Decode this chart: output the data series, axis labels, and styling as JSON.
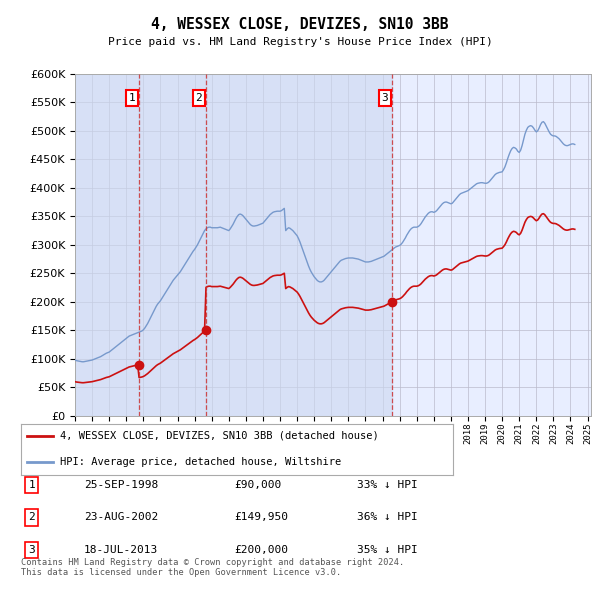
{
  "title": "4, WESSEX CLOSE, DEVIZES, SN10 3BB",
  "subtitle": "Price paid vs. HM Land Registry's House Price Index (HPI)",
  "background_color": "#ffffff",
  "plot_bg_color": "#e8eeff",
  "grid_color": "#bbbbcc",
  "hpi_line_color": "#7799cc",
  "price_line_color": "#cc1111",
  "vline_color": "#cc3333",
  "shade_color": "#ccd8f0",
  "sales": [
    {
      "label": 1,
      "date_x": 1998.73,
      "price": 90000
    },
    {
      "label": 2,
      "date_x": 2002.64,
      "price": 149950
    },
    {
      "label": 3,
      "date_x": 2013.54,
      "price": 200000
    }
  ],
  "legend_entries": [
    {
      "label": "4, WESSEX CLOSE, DEVIZES, SN10 3BB (detached house)",
      "color": "#cc1111"
    },
    {
      "label": "HPI: Average price, detached house, Wiltshire",
      "color": "#7799cc"
    }
  ],
  "table_rows": [
    {
      "num": "1",
      "date": "25-SEP-1998",
      "amount": "£90,000",
      "pct": "33% ↓ HPI"
    },
    {
      "num": "2",
      "date": "23-AUG-2002",
      "amount": "£149,950",
      "pct": "36% ↓ HPI"
    },
    {
      "num": "3",
      "date": "18-JUL-2013",
      "amount": "£200,000",
      "pct": "35% ↓ HPI"
    }
  ],
  "footnote": "Contains HM Land Registry data © Crown copyright and database right 2024.\nThis data is licensed under the Open Government Licence v3.0.",
  "ylim": [
    0,
    600000
  ],
  "yticks": [
    0,
    50000,
    100000,
    150000,
    200000,
    250000,
    300000,
    350000,
    400000,
    450000,
    500000,
    550000,
    600000
  ],
  "xlim": [
    1995.0,
    2025.2
  ],
  "xticks": [
    1995,
    1996,
    1997,
    1998,
    1999,
    2000,
    2001,
    2002,
    2003,
    2004,
    2005,
    2006,
    2007,
    2008,
    2009,
    2010,
    2011,
    2012,
    2013,
    2014,
    2015,
    2016,
    2017,
    2018,
    2019,
    2020,
    2021,
    2022,
    2023,
    2024,
    2025
  ],
  "hpi_x": [
    1995.0,
    1995.083,
    1995.167,
    1995.25,
    1995.333,
    1995.417,
    1995.5,
    1995.583,
    1995.667,
    1995.75,
    1995.833,
    1995.917,
    1996.0,
    1996.083,
    1996.167,
    1996.25,
    1996.333,
    1996.417,
    1996.5,
    1996.583,
    1996.667,
    1996.75,
    1996.833,
    1996.917,
    1997.0,
    1997.083,
    1997.167,
    1997.25,
    1997.333,
    1997.417,
    1997.5,
    1997.583,
    1997.667,
    1997.75,
    1997.833,
    1997.917,
    1998.0,
    1998.083,
    1998.167,
    1998.25,
    1998.333,
    1998.417,
    1998.5,
    1998.583,
    1998.667,
    1998.75,
    1998.833,
    1998.917,
    1999.0,
    1999.083,
    1999.167,
    1999.25,
    1999.333,
    1999.417,
    1999.5,
    1999.583,
    1999.667,
    1999.75,
    1999.833,
    1999.917,
    2000.0,
    2000.083,
    2000.167,
    2000.25,
    2000.333,
    2000.417,
    2000.5,
    2000.583,
    2000.667,
    2000.75,
    2000.833,
    2000.917,
    2001.0,
    2001.083,
    2001.167,
    2001.25,
    2001.333,
    2001.417,
    2001.5,
    2001.583,
    2001.667,
    2001.75,
    2001.833,
    2001.917,
    2002.0,
    2002.083,
    2002.167,
    2002.25,
    2002.333,
    2002.417,
    2002.5,
    2002.583,
    2002.667,
    2002.75,
    2002.833,
    2002.917,
    2003.0,
    2003.083,
    2003.167,
    2003.25,
    2003.333,
    2003.417,
    2003.5,
    2003.583,
    2003.667,
    2003.75,
    2003.833,
    2003.917,
    2004.0,
    2004.083,
    2004.167,
    2004.25,
    2004.333,
    2004.417,
    2004.5,
    2004.583,
    2004.667,
    2004.75,
    2004.833,
    2004.917,
    2005.0,
    2005.083,
    2005.167,
    2005.25,
    2005.333,
    2005.417,
    2005.5,
    2005.583,
    2005.667,
    2005.75,
    2005.833,
    2005.917,
    2006.0,
    2006.083,
    2006.167,
    2006.25,
    2006.333,
    2006.417,
    2006.5,
    2006.583,
    2006.667,
    2006.75,
    2006.833,
    2006.917,
    2007.0,
    2007.083,
    2007.167,
    2007.25,
    2007.333,
    2007.417,
    2007.5,
    2007.583,
    2007.667,
    2007.75,
    2007.833,
    2007.917,
    2008.0,
    2008.083,
    2008.167,
    2008.25,
    2008.333,
    2008.417,
    2008.5,
    2008.583,
    2008.667,
    2008.75,
    2008.833,
    2008.917,
    2009.0,
    2009.083,
    2009.167,
    2009.25,
    2009.333,
    2009.417,
    2009.5,
    2009.583,
    2009.667,
    2009.75,
    2009.833,
    2009.917,
    2010.0,
    2010.083,
    2010.167,
    2010.25,
    2010.333,
    2010.417,
    2010.5,
    2010.583,
    2010.667,
    2010.75,
    2010.833,
    2010.917,
    2011.0,
    2011.083,
    2011.167,
    2011.25,
    2011.333,
    2011.417,
    2011.5,
    2011.583,
    2011.667,
    2011.75,
    2011.833,
    2011.917,
    2012.0,
    2012.083,
    2012.167,
    2012.25,
    2012.333,
    2012.417,
    2012.5,
    2012.583,
    2012.667,
    2012.75,
    2012.833,
    2012.917,
    2013.0,
    2013.083,
    2013.167,
    2013.25,
    2013.333,
    2013.417,
    2013.5,
    2013.583,
    2013.667,
    2013.75,
    2013.833,
    2013.917,
    2014.0,
    2014.083,
    2014.167,
    2014.25,
    2014.333,
    2014.417,
    2014.5,
    2014.583,
    2014.667,
    2014.75,
    2014.833,
    2014.917,
    2015.0,
    2015.083,
    2015.167,
    2015.25,
    2015.333,
    2015.417,
    2015.5,
    2015.583,
    2015.667,
    2015.75,
    2015.833,
    2015.917,
    2016.0,
    2016.083,
    2016.167,
    2016.25,
    2016.333,
    2016.417,
    2016.5,
    2016.583,
    2016.667,
    2016.75,
    2016.833,
    2016.917,
    2017.0,
    2017.083,
    2017.167,
    2017.25,
    2017.333,
    2017.417,
    2017.5,
    2017.583,
    2017.667,
    2017.75,
    2017.833,
    2017.917,
    2018.0,
    2018.083,
    2018.167,
    2018.25,
    2018.333,
    2018.417,
    2018.5,
    2018.583,
    2018.667,
    2018.75,
    2018.833,
    2018.917,
    2019.0,
    2019.083,
    2019.167,
    2019.25,
    2019.333,
    2019.417,
    2019.5,
    2019.583,
    2019.667,
    2019.75,
    2019.833,
    2019.917,
    2020.0,
    2020.083,
    2020.167,
    2020.25,
    2020.333,
    2020.417,
    2020.5,
    2020.583,
    2020.667,
    2020.75,
    2020.833,
    2020.917,
    2021.0,
    2021.083,
    2021.167,
    2021.25,
    2021.333,
    2021.417,
    2021.5,
    2021.583,
    2021.667,
    2021.75,
    2021.833,
    2021.917,
    2022.0,
    2022.083,
    2022.167,
    2022.25,
    2022.333,
    2022.417,
    2022.5,
    2022.583,
    2022.667,
    2022.75,
    2022.833,
    2022.917,
    2023.0,
    2023.083,
    2023.167,
    2023.25,
    2023.333,
    2023.417,
    2023.5,
    2023.583,
    2023.667,
    2023.75,
    2023.833,
    2023.917,
    2024.0,
    2024.083,
    2024.167,
    2024.25
  ],
  "hpi_y": [
    98000,
    97000,
    96500,
    96000,
    95500,
    95000,
    95000,
    95500,
    96000,
    96500,
    97000,
    97500,
    98000,
    99000,
    100000,
    101000,
    102000,
    103000,
    104000,
    105500,
    107000,
    108500,
    110000,
    111000,
    112000,
    114000,
    116000,
    118000,
    120000,
    122000,
    124000,
    126000,
    128000,
    130000,
    132000,
    134000,
    136000,
    138000,
    140000,
    141000,
    142000,
    143000,
    144000,
    145000,
    146000,
    147000,
    148000,
    149000,
    151000,
    154000,
    158000,
    162000,
    167000,
    172000,
    177000,
    182000,
    187000,
    192000,
    196000,
    199000,
    202000,
    206000,
    210000,
    214000,
    218000,
    222000,
    226000,
    230000,
    234000,
    238000,
    241000,
    244000,
    247000,
    250000,
    253000,
    257000,
    261000,
    265000,
    269000,
    273000,
    277000,
    281000,
    285000,
    289000,
    292000,
    296000,
    300000,
    305000,
    310000,
    315000,
    320000,
    325000,
    328000,
    330000,
    331000,
    331000,
    330000,
    330000,
    330000,
    330000,
    330000,
    330500,
    331000,
    330000,
    329000,
    328000,
    327000,
    326000,
    325000,
    328000,
    332000,
    336000,
    341000,
    346000,
    350000,
    353000,
    354000,
    353000,
    351000,
    348000,
    345000,
    342000,
    339000,
    336000,
    334000,
    333000,
    333000,
    333500,
    334000,
    335000,
    336000,
    337000,
    338000,
    341000,
    344000,
    347000,
    350000,
    353000,
    355000,
    357000,
    358000,
    358500,
    359000,
    359000,
    359000,
    360000,
    362000,
    364000,
    325000,
    328000,
    330000,
    329000,
    327000,
    325000,
    322000,
    319000,
    316000,
    311000,
    305000,
    298000,
    291000,
    284000,
    277000,
    270000,
    263000,
    257000,
    252000,
    248000,
    244000,
    241000,
    238000,
    236000,
    235000,
    235000,
    236000,
    238000,
    241000,
    244000,
    247000,
    250000,
    253000,
    256000,
    259000,
    262000,
    265000,
    268000,
    271000,
    273000,
    274000,
    275000,
    276000,
    276500,
    277000,
    277000,
    277000,
    277000,
    276500,
    276000,
    275500,
    275000,
    274000,
    273000,
    272000,
    271000,
    270000,
    270000,
    270000,
    270500,
    271000,
    272000,
    273000,
    274000,
    275000,
    276000,
    277000,
    278000,
    279000,
    280000,
    282000,
    284000,
    286000,
    288000,
    290000,
    292000,
    294000,
    296000,
    297000,
    298000,
    299000,
    301000,
    304000,
    308000,
    312000,
    317000,
    321000,
    325000,
    328000,
    330000,
    331000,
    331000,
    331000,
    332000,
    334000,
    337000,
    341000,
    345000,
    349000,
    352000,
    355000,
    357000,
    358000,
    358000,
    357000,
    358000,
    360000,
    363000,
    366000,
    369000,
    372000,
    374000,
    375000,
    375000,
    374000,
    373000,
    372000,
    373000,
    376000,
    379000,
    382000,
    385000,
    388000,
    390000,
    391000,
    392000,
    393000,
    394000,
    395000,
    397000,
    399000,
    401000,
    403000,
    405000,
    407000,
    408000,
    408500,
    409000,
    409000,
    408500,
    408000,
    408000,
    409000,
    411000,
    414000,
    417000,
    420000,
    423000,
    425000,
    426000,
    427000,
    427500,
    428000,
    432000,
    437000,
    444000,
    452000,
    459000,
    465000,
    469000,
    471000,
    470000,
    468000,
    464000,
    462000,
    466000,
    474000,
    484000,
    494000,
    501000,
    506000,
    508000,
    509000,
    508000,
    505000,
    501000,
    498000,
    500000,
    505000,
    511000,
    515000,
    516000,
    513000,
    508000,
    503000,
    498000,
    494000,
    492000,
    491000,
    491000,
    490000,
    488000,
    486000,
    483000,
    480000,
    477000,
    475000,
    474000,
    474000,
    475000,
    476000,
    477000,
    477000,
    476000
  ]
}
